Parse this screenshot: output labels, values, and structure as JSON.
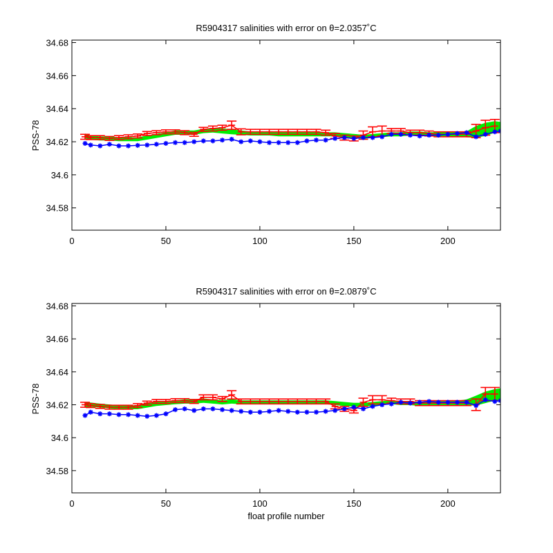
{
  "chart_data": [
    {
      "type": "line",
      "title": "R5904317 salinities with error on θ=2.0357˚C",
      "xlabel": "",
      "ylabel": "PSS-78",
      "xlim": [
        0,
        228
      ],
      "ylim": [
        34.5665,
        34.6815
      ],
      "xticks": [
        0,
        50,
        100,
        150,
        200
      ],
      "yticks": [
        34.58,
        34.6,
        34.62,
        34.64,
        34.66,
        34.68
      ],
      "ytick_labels": [
        "34.58",
        "34.6",
        "34.62",
        "34.64",
        "34.66",
        "34.68"
      ],
      "grid": false,
      "series": [
        {
          "color": "#00ee00",
          "style": "filled-error-band",
          "x": [
            7,
            10,
            15,
            20,
            25,
            30,
            35,
            40,
            45,
            50,
            55,
            60,
            65,
            70,
            75,
            80,
            85,
            90,
            95,
            100,
            105,
            110,
            115,
            120,
            125,
            130,
            135,
            140,
            145,
            150,
            155,
            160,
            165,
            170,
            175,
            180,
            185,
            190,
            195,
            200,
            205,
            210,
            215,
            220,
            225,
            228
          ],
          "values": [
            34.6235,
            34.6225,
            34.622,
            34.622,
            34.6215,
            34.6215,
            34.6215,
            34.6225,
            34.6235,
            34.6245,
            34.6255,
            34.6255,
            34.6255,
            34.6265,
            34.627,
            34.6265,
            34.626,
            34.6255,
            34.625,
            34.625,
            34.625,
            34.6245,
            34.6245,
            34.6245,
            34.6245,
            34.6245,
            34.6245,
            34.6245,
            34.624,
            34.6235,
            34.623,
            34.6235,
            34.624,
            34.6245,
            34.6245,
            34.625,
            34.625,
            34.6245,
            34.6245,
            34.6245,
            34.6245,
            34.6245,
            34.626,
            34.6275,
            34.629,
            34.629
          ],
          "err": [
            0.0015,
            0.0013,
            0.0012,
            0.0012,
            0.0012,
            0.0012,
            0.0012,
            0.0012,
            0.0012,
            0.0012,
            0.0013,
            0.0013,
            0.0013,
            0.0013,
            0.0014,
            0.0015,
            0.0015,
            0.0013,
            0.0012,
            0.0012,
            0.0012,
            0.0012,
            0.0012,
            0.0012,
            0.0012,
            0.0012,
            0.0012,
            0.0012,
            0.0012,
            0.0012,
            0.0012,
            0.0012,
            0.0012,
            0.0012,
            0.0012,
            0.0012,
            0.0012,
            0.0012,
            0.0012,
            0.0013,
            0.0014,
            0.0018,
            0.0035,
            0.004,
            0.0035,
            0.003
          ]
        },
        {
          "color": "#ff0000",
          "style": "errorbar",
          "x": [
            7,
            10,
            15,
            20,
            25,
            30,
            35,
            40,
            45,
            50,
            55,
            60,
            65,
            70,
            75,
            80,
            85,
            90,
            95,
            100,
            105,
            110,
            115,
            120,
            125,
            130,
            135,
            140,
            145,
            150,
            155,
            160,
            165,
            170,
            175,
            180,
            185,
            190,
            195,
            200,
            205,
            210,
            215,
            220,
            225
          ],
          "values": [
            34.623,
            34.6225,
            34.6225,
            34.622,
            34.6225,
            34.623,
            34.6235,
            34.625,
            34.6255,
            34.626,
            34.626,
            34.6255,
            34.6245,
            34.6275,
            34.628,
            34.6285,
            34.63,
            34.626,
            34.626,
            34.626,
            34.626,
            34.626,
            34.626,
            34.626,
            34.626,
            34.626,
            34.6255,
            34.6235,
            34.6225,
            34.622,
            34.624,
            34.626,
            34.6265,
            34.6265,
            34.6265,
            34.6255,
            34.6255,
            34.625,
            34.6245,
            34.6245,
            34.6245,
            34.6245,
            34.6265,
            34.6285,
            34.6295
          ],
          "err": [
            0.0015,
            0.0012,
            0.0012,
            0.0012,
            0.0012,
            0.0012,
            0.0012,
            0.0012,
            0.0012,
            0.0012,
            0.0012,
            0.0012,
            0.0012,
            0.0012,
            0.0015,
            0.0015,
            0.0025,
            0.0018,
            0.0015,
            0.0015,
            0.0015,
            0.0015,
            0.0015,
            0.0015,
            0.0015,
            0.0015,
            0.0015,
            0.0015,
            0.0015,
            0.0015,
            0.0025,
            0.003,
            0.003,
            0.0015,
            0.0015,
            0.0015,
            0.0015,
            0.0015,
            0.0015,
            0.0015,
            0.0015,
            0.0015,
            0.004,
            0.0045,
            0.004
          ]
        },
        {
          "color": "#0000ff",
          "style": "markers",
          "x": [
            7,
            10,
            15,
            20,
            25,
            30,
            35,
            40,
            45,
            50,
            55,
            60,
            65,
            70,
            75,
            80,
            85,
            90,
            95,
            100,
            105,
            110,
            115,
            120,
            125,
            130,
            135,
            140,
            145,
            150,
            155,
            160,
            165,
            170,
            175,
            180,
            185,
            190,
            195,
            200,
            205,
            210,
            215,
            220,
            225,
            228
          ],
          "values": [
            34.619,
            34.618,
            34.6175,
            34.6185,
            34.6175,
            34.6175,
            34.6178,
            34.618,
            34.6185,
            34.619,
            34.6195,
            34.6195,
            34.62,
            34.6205,
            34.6205,
            34.621,
            34.6215,
            34.62,
            34.6205,
            34.62,
            34.6195,
            34.6195,
            34.6195,
            34.6195,
            34.6205,
            34.621,
            34.621,
            34.622,
            34.6225,
            34.622,
            34.6225,
            34.6225,
            34.623,
            34.6245,
            34.6245,
            34.624,
            34.6235,
            34.624,
            34.624,
            34.6245,
            34.625,
            34.6255,
            34.623,
            34.6245,
            34.626,
            34.6265
          ]
        }
      ]
    },
    {
      "type": "line",
      "title": "R5904317 salinities with error on θ=2.0879˚C",
      "xlabel": "float profile number",
      "ylabel": "PSS-78",
      "xlim": [
        0,
        228
      ],
      "ylim": [
        34.5665,
        34.6815
      ],
      "xticks": [
        0,
        50,
        100,
        150,
        200
      ],
      "yticks": [
        34.58,
        34.6,
        34.62,
        34.64,
        34.66,
        34.68
      ],
      "ytick_labels": [
        "34.58",
        "34.6",
        "34.62",
        "34.64",
        "34.66",
        "34.68"
      ],
      "grid": false,
      "series": [
        {
          "color": "#00ee00",
          "style": "filled-error-band",
          "x": [
            7,
            10,
            15,
            20,
            25,
            30,
            35,
            40,
            45,
            50,
            55,
            60,
            65,
            70,
            75,
            80,
            85,
            90,
            95,
            100,
            105,
            110,
            115,
            120,
            125,
            130,
            135,
            140,
            145,
            150,
            155,
            160,
            165,
            170,
            175,
            180,
            185,
            190,
            195,
            200,
            205,
            210,
            215,
            220,
            225,
            228
          ],
          "values": [
            34.62,
            34.62,
            34.6195,
            34.619,
            34.6185,
            34.6185,
            34.6185,
            34.6195,
            34.6205,
            34.621,
            34.6215,
            34.622,
            34.622,
            34.6225,
            34.622,
            34.6215,
            34.622,
            34.6215,
            34.6215,
            34.6215,
            34.6215,
            34.6215,
            34.6215,
            34.6215,
            34.6215,
            34.6215,
            34.6215,
            34.621,
            34.6205,
            34.62,
            34.62,
            34.6205,
            34.621,
            34.6215,
            34.621,
            34.621,
            34.6205,
            34.621,
            34.621,
            34.621,
            34.621,
            34.6215,
            34.6225,
            34.6245,
            34.626,
            34.6265
          ],
          "err": [
            0.0015,
            0.0013,
            0.0012,
            0.0012,
            0.0012,
            0.0012,
            0.0012,
            0.0012,
            0.0012,
            0.0012,
            0.0012,
            0.0013,
            0.0013,
            0.0013,
            0.0013,
            0.0013,
            0.0013,
            0.0012,
            0.0012,
            0.0012,
            0.0012,
            0.0012,
            0.0012,
            0.0012,
            0.0012,
            0.0012,
            0.0012,
            0.0012,
            0.0012,
            0.0012,
            0.0012,
            0.0012,
            0.0012,
            0.0012,
            0.0012,
            0.0012,
            0.0012,
            0.0012,
            0.0012,
            0.0012,
            0.0014,
            0.0018,
            0.003,
            0.0035,
            0.0035,
            0.0035
          ]
        },
        {
          "color": "#ff0000",
          "style": "errorbar",
          "x": [
            7,
            10,
            15,
            20,
            25,
            30,
            35,
            40,
            45,
            50,
            55,
            60,
            65,
            70,
            75,
            80,
            85,
            90,
            95,
            100,
            105,
            110,
            115,
            120,
            125,
            130,
            135,
            140,
            145,
            150,
            155,
            160,
            165,
            170,
            175,
            180,
            185,
            190,
            195,
            200,
            205,
            210,
            215,
            220,
            225
          ],
          "values": [
            34.62,
            34.6195,
            34.619,
            34.6185,
            34.6185,
            34.6185,
            34.6195,
            34.621,
            34.622,
            34.622,
            34.6225,
            34.6225,
            34.622,
            34.6245,
            34.6245,
            34.6235,
            34.626,
            34.622,
            34.622,
            34.622,
            34.622,
            34.622,
            34.622,
            34.622,
            34.622,
            34.622,
            34.622,
            34.619,
            34.6175,
            34.6165,
            34.6215,
            34.623,
            34.623,
            34.6225,
            34.622,
            34.622,
            34.621,
            34.621,
            34.621,
            34.621,
            34.621,
            34.621,
            34.62,
            34.6265,
            34.6265
          ],
          "err": [
            0.0015,
            0.0012,
            0.0012,
            0.0012,
            0.0012,
            0.0012,
            0.0012,
            0.0012,
            0.0012,
            0.0012,
            0.0012,
            0.0012,
            0.0012,
            0.0015,
            0.0015,
            0.0015,
            0.0025,
            0.0015,
            0.0015,
            0.0015,
            0.0015,
            0.0015,
            0.0015,
            0.0015,
            0.0015,
            0.0015,
            0.0015,
            0.0015,
            0.0015,
            0.0015,
            0.0025,
            0.0025,
            0.0025,
            0.0015,
            0.0015,
            0.0015,
            0.0015,
            0.0015,
            0.0015,
            0.0015,
            0.0015,
            0.0015,
            0.0035,
            0.004,
            0.004
          ]
        },
        {
          "color": "#0000ff",
          "style": "markers",
          "x": [
            7,
            10,
            15,
            20,
            25,
            30,
            35,
            40,
            45,
            50,
            55,
            60,
            65,
            70,
            75,
            80,
            85,
            90,
            95,
            100,
            105,
            110,
            115,
            120,
            125,
            130,
            135,
            140,
            145,
            150,
            155,
            160,
            165,
            170,
            175,
            180,
            185,
            190,
            195,
            200,
            205,
            210,
            215,
            220,
            225,
            228
          ],
          "values": [
            34.6135,
            34.6155,
            34.6145,
            34.6145,
            34.614,
            34.614,
            34.6135,
            34.613,
            34.6135,
            34.6145,
            34.617,
            34.6175,
            34.6165,
            34.6175,
            34.6175,
            34.617,
            34.6165,
            34.616,
            34.6155,
            34.6155,
            34.616,
            34.6165,
            34.616,
            34.6155,
            34.6155,
            34.6155,
            34.616,
            34.6165,
            34.6175,
            34.6185,
            34.6175,
            34.619,
            34.62,
            34.6205,
            34.6215,
            34.621,
            34.6215,
            34.622,
            34.6215,
            34.6215,
            34.6215,
            34.6215,
            34.6195,
            34.623,
            34.622,
            34.6225
          ]
        }
      ]
    }
  ]
}
